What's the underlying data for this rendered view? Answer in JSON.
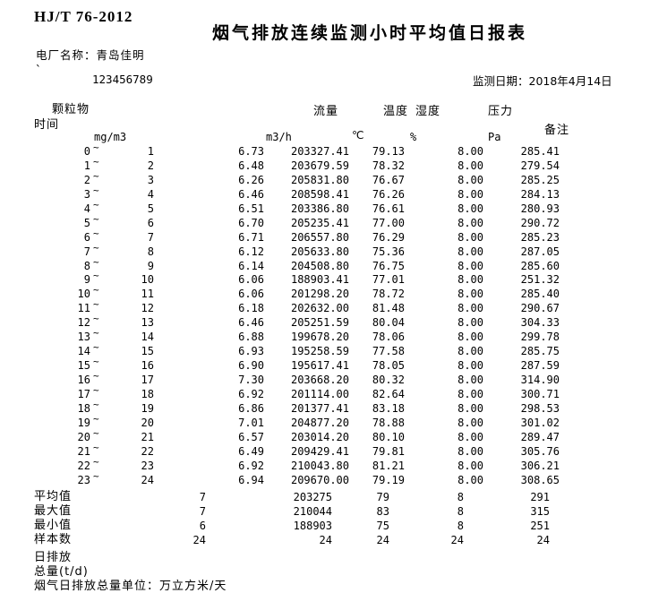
{
  "header": {
    "standard": "HJ/T 76-2012",
    "title": "烟气排放连续监测小时平均值日报表",
    "plant_name": "电厂名称：青岛佳明",
    "mark": "`",
    "serial": "123456789",
    "monitor_date": "监测日期：2018年4月14日"
  },
  "table": {
    "tilde": "~",
    "col_headers": {
      "time": "时间",
      "dust": "颗粒物",
      "flow": "流量",
      "temp": "温度",
      "humidity": "湿度",
      "pressure": "压力",
      "remark": "备注"
    },
    "units": {
      "dust": "mg/m3",
      "flow": "m3/h",
      "temp": "℃",
      "humidity": "%",
      "pressure": "Pa"
    },
    "rows": [
      {
        "start": "0",
        "end": "1",
        "dust": "6.73",
        "flow": "203327.41",
        "temp": "79.13",
        "humidity": "8.00",
        "pressure": "285.41"
      },
      {
        "start": "1",
        "end": "2",
        "dust": "6.48",
        "flow": "203679.59",
        "temp": "78.32",
        "humidity": "8.00",
        "pressure": "279.54"
      },
      {
        "start": "2",
        "end": "3",
        "dust": "6.26",
        "flow": "205831.80",
        "temp": "76.67",
        "humidity": "8.00",
        "pressure": "285.25"
      },
      {
        "start": "3",
        "end": "4",
        "dust": "6.46",
        "flow": "208598.41",
        "temp": "76.26",
        "humidity": "8.00",
        "pressure": "284.13"
      },
      {
        "start": "4",
        "end": "5",
        "dust": "6.51",
        "flow": "203386.80",
        "temp": "76.61",
        "humidity": "8.00",
        "pressure": "280.93"
      },
      {
        "start": "5",
        "end": "6",
        "dust": "6.70",
        "flow": "205235.41",
        "temp": "77.00",
        "humidity": "8.00",
        "pressure": "290.72"
      },
      {
        "start": "6",
        "end": "7",
        "dust": "6.71",
        "flow": "206557.80",
        "temp": "76.29",
        "humidity": "8.00",
        "pressure": "285.23"
      },
      {
        "start": "7",
        "end": "8",
        "dust": "6.12",
        "flow": "205633.80",
        "temp": "75.36",
        "humidity": "8.00",
        "pressure": "287.05"
      },
      {
        "start": "8",
        "end": "9",
        "dust": "6.14",
        "flow": "204508.80",
        "temp": "76.75",
        "humidity": "8.00",
        "pressure": "285.60"
      },
      {
        "start": "9",
        "end": "10",
        "dust": "6.06",
        "flow": "188903.41",
        "temp": "77.01",
        "humidity": "8.00",
        "pressure": "251.32"
      },
      {
        "start": "10",
        "end": "11",
        "dust": "6.06",
        "flow": "201298.20",
        "temp": "78.72",
        "humidity": "8.00",
        "pressure": "285.40"
      },
      {
        "start": "11",
        "end": "12",
        "dust": "6.18",
        "flow": "202632.00",
        "temp": "81.48",
        "humidity": "8.00",
        "pressure": "290.67"
      },
      {
        "start": "12",
        "end": "13",
        "dust": "6.46",
        "flow": "205251.59",
        "temp": "80.04",
        "humidity": "8.00",
        "pressure": "304.33"
      },
      {
        "start": "13",
        "end": "14",
        "dust": "6.88",
        "flow": "199678.20",
        "temp": "78.06",
        "humidity": "8.00",
        "pressure": "299.78"
      },
      {
        "start": "14",
        "end": "15",
        "dust": "6.93",
        "flow": "195258.59",
        "temp": "77.58",
        "humidity": "8.00",
        "pressure": "285.75"
      },
      {
        "start": "15",
        "end": "16",
        "dust": "6.90",
        "flow": "195617.41",
        "temp": "78.05",
        "humidity": "8.00",
        "pressure": "287.59"
      },
      {
        "start": "16",
        "end": "17",
        "dust": "7.30",
        "flow": "203668.20",
        "temp": "80.32",
        "humidity": "8.00",
        "pressure": "314.90"
      },
      {
        "start": "17",
        "end": "18",
        "dust": "6.92",
        "flow": "201114.00",
        "temp": "82.64",
        "humidity": "8.00",
        "pressure": "300.71"
      },
      {
        "start": "18",
        "end": "19",
        "dust": "6.86",
        "flow": "201377.41",
        "temp": "83.18",
        "humidity": "8.00",
        "pressure": "298.53"
      },
      {
        "start": "19",
        "end": "20",
        "dust": "7.01",
        "flow": "204877.20",
        "temp": "78.88",
        "humidity": "8.00",
        "pressure": "301.02"
      },
      {
        "start": "20",
        "end": "21",
        "dust": "6.57",
        "flow": "203014.20",
        "temp": "80.10",
        "humidity": "8.00",
        "pressure": "289.47"
      },
      {
        "start": "21",
        "end": "22",
        "dust": "6.49",
        "flow": "209429.41",
        "temp": "79.81",
        "humidity": "8.00",
        "pressure": "305.76"
      },
      {
        "start": "22",
        "end": "23",
        "dust": "6.92",
        "flow": "210043.80",
        "temp": "81.21",
        "humidity": "8.00",
        "pressure": "306.21"
      },
      {
        "start": "23",
        "end": "24",
        "dust": "6.94",
        "flow": "209670.00",
        "temp": "79.19",
        "humidity": "8.00",
        "pressure": "308.65"
      }
    ],
    "summary": [
      {
        "label": "平均值",
        "values": [
          "7",
          "203275",
          "79",
          "8",
          "291"
        ]
      },
      {
        "label": "最大值",
        "values": [
          "7",
          "210044",
          "83",
          "8",
          "315"
        ]
      },
      {
        "label": "最小值",
        "values": [
          "6",
          "188903",
          "75",
          "8",
          "251"
        ]
      },
      {
        "label": "样本数",
        "values": [
          "24",
          "24",
          "24",
          "24",
          "24"
        ]
      }
    ],
    "footer_lines": [
      "日排放",
      "总量(t/d)",
      "烟气日排放总量单位：万立方米/天"
    ]
  }
}
